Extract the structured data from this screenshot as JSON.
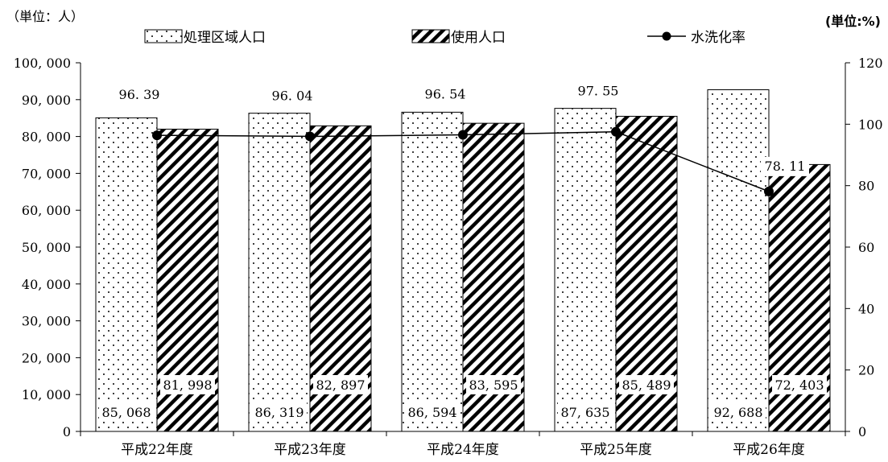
{
  "chart_data": {
    "type": "bar",
    "categories": [
      "平成22年度",
      "平成23年度",
      "平成24年度",
      "平成25年度",
      "平成26年度"
    ],
    "series": [
      {
        "name": "処理区域人口",
        "kind": "bar",
        "pattern": "dots",
        "axis": "left",
        "values": [
          85068,
          86319,
          86594,
          87635,
          92688
        ],
        "labels": [
          "85, 068",
          "86, 319",
          "86, 594",
          "87, 635",
          "92, 688"
        ]
      },
      {
        "name": "使用人口",
        "kind": "bar",
        "pattern": "diagonal-stripes",
        "axis": "left",
        "values": [
          81998,
          82897,
          83595,
          85489,
          72403
        ],
        "labels": [
          "81, 998",
          "82, 897",
          "83, 595",
          "85, 489",
          "72, 403"
        ]
      },
      {
        "name": "水洗化率",
        "kind": "line",
        "marker": "circle",
        "axis": "right",
        "values": [
          96.39,
          96.04,
          96.54,
          97.55,
          78.11
        ],
        "labels": [
          "96. 39",
          "96. 04",
          "96. 54",
          "97. 55",
          "78. 11"
        ]
      }
    ],
    "y_left": {
      "unit_label": "（単位：人）",
      "ylim": [
        0,
        100000
      ],
      "ticks": [
        "0",
        "10, 000",
        "20, 000",
        "30, 000",
        "40, 000",
        "50, 000",
        "60, 000",
        "70, 000",
        "80, 000",
        "90, 000",
        "100, 000"
      ]
    },
    "y_right": {
      "unit_label": "(単位:%)",
      "ylim": [
        0,
        120
      ],
      "ticks": [
        "0",
        "20",
        "40",
        "60",
        "80",
        "100",
        "120"
      ]
    },
    "legend_position": "top",
    "grid": false,
    "colors": {
      "ink": "#000000",
      "background": "#ffffff"
    }
  }
}
